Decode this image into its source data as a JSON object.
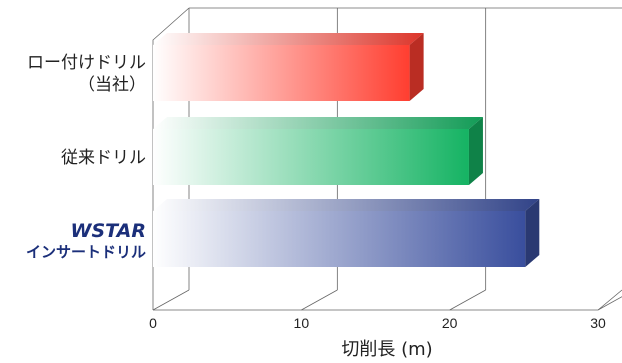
{
  "chart_data": {
    "type": "bar",
    "orientation": "horizontal",
    "style": "3d",
    "categories": [
      {
        "lines": [
          "ロー付けドリル",
          "（当社）"
        ],
        "value": 17.3,
        "color": "#e8382c"
      },
      {
        "lines": [
          "従来ドリル"
        ],
        "value": 21.3,
        "color": "#13a35a"
      },
      {
        "lines": [
          "WSTAR",
          "インサートドリル"
        ],
        "value": 25.1,
        "color": "#34478f"
      }
    ],
    "xlabel": "切削長 (m)",
    "xlim": [
      0,
      30
    ],
    "xticks": [
      "0",
      "10",
      "20",
      "30"
    ],
    "grid": true
  }
}
